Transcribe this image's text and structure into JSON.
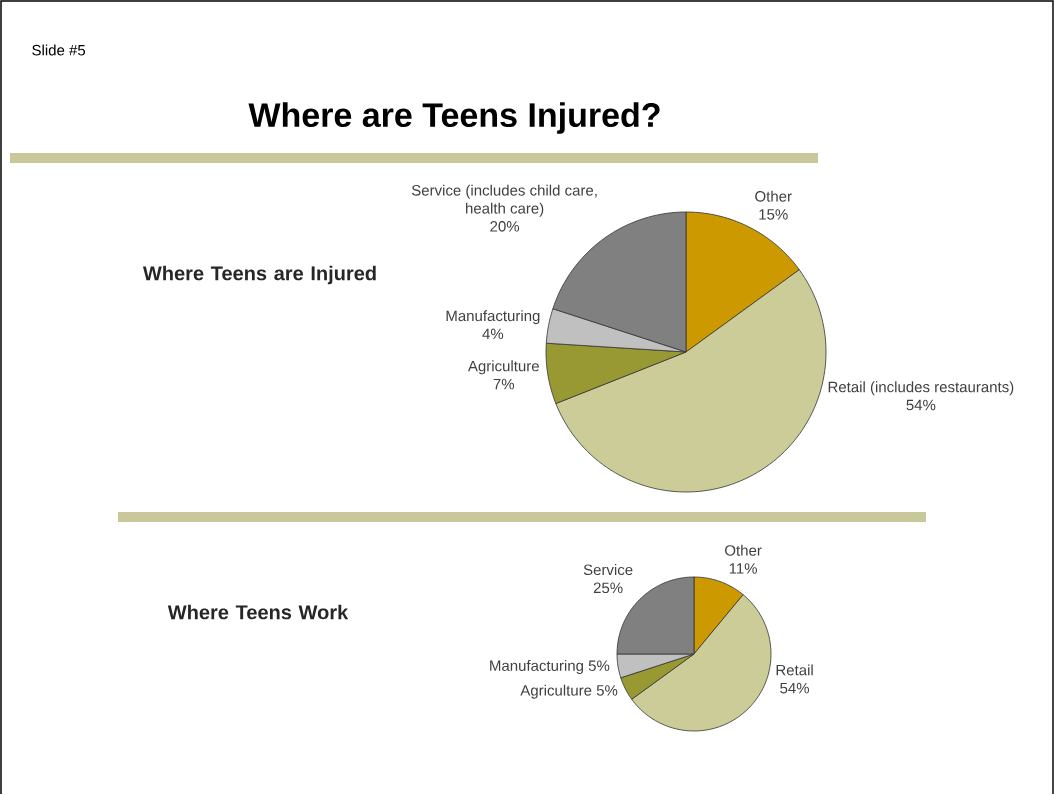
{
  "chart_data": [
    {
      "type": "pie",
      "title": "Where Teens are Injured",
      "annotations": [
        "Slide #5",
        "Where are Teens Injured?"
      ],
      "categories": [
        "Other",
        "Retail (includes restaurants)",
        "Agriculture",
        "Manufacturing",
        "Service (includes child care, health care)"
      ],
      "values": [
        15,
        54,
        7,
        4,
        20
      ],
      "value_labels": [
        "15%",
        "54%",
        "7%",
        "4%",
        "20%"
      ],
      "colors": [
        "#cc9900",
        "#cccc99",
        "#999933",
        "#c0c0c0",
        "#808080"
      ]
    },
    {
      "type": "pie",
      "title": "Where Teens Work",
      "categories": [
        "Other",
        "Retail",
        "Agriculture",
        "Manufacturing",
        "Service"
      ],
      "values": [
        11,
        54,
        5,
        5,
        25
      ],
      "value_labels": [
        "11%",
        "54%",
        "5%",
        "5%",
        "25%"
      ],
      "colors": [
        "#cc9900",
        "#cccc99",
        "#999933",
        "#c0c0c0",
        "#808080"
      ]
    }
  ]
}
